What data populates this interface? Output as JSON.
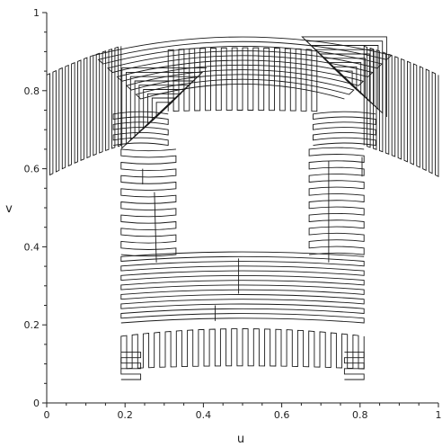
{
  "chart_data": {
    "type": "diagram",
    "xlabel": "u",
    "ylabel": "v",
    "xlim": [
      0,
      1
    ],
    "ylim": [
      0,
      1
    ],
    "x_ticks": [
      "0",
      "0.2",
      "0.4",
      "0.6",
      "0.8",
      "1"
    ],
    "y_ticks": [
      "0",
      "0.2",
      "0.4",
      "0.6",
      "0.8",
      "1"
    ],
    "grid": false,
    "line_color": "#1a1a1a"
  }
}
